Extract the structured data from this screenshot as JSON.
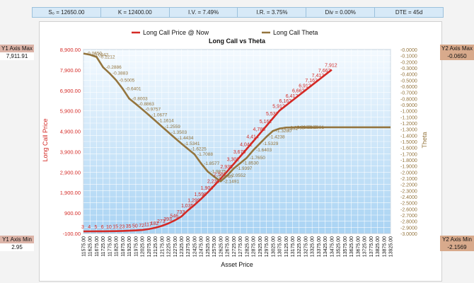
{
  "params": {
    "s0": "S₀ = 12650.00",
    "k": "K = 12400.00",
    "iv": "I.V. = 7.49%",
    "ir": "I.R. = 3.75%",
    "div": "Div = 0.00%",
    "dte": "DTE = 45d"
  },
  "axis_boxes": {
    "y1_max_label": "Y1 Axis Max",
    "y1_max_value": "7,911.91",
    "y1_min_label": "Y1 Axis Min",
    "y1_min_value": "2.95",
    "y2_max_label": "Y2 Axis Max",
    "y2_max_value": "-0.0650",
    "y2_min_label": "Y2 Axis Min",
    "y2_min_value": "-2.1569"
  },
  "colors": {
    "price_line": "#d42a26",
    "theta_line": "#94753e",
    "plot_top": "#f4faff",
    "plot_bottom": "#a9d3f3",
    "y1_text": "#d42a26",
    "y2_text": "#94753e"
  },
  "chart_data": {
    "type": "line",
    "title": "Long Call vs Theta",
    "xlabel": "Asset Price",
    "ylabel_left": "Long Call Price",
    "ylabel_right": "Theta",
    "y1_lim": [
      -100,
      8900
    ],
    "y1_ticks": [
      "8,900.00",
      "7,900.00",
      "6,900.00",
      "5,900.00",
      "4,900.00",
      "3,900.00",
      "2,900.00",
      "1,900.00",
      "900.00",
      "-100.00"
    ],
    "y1_tick_values": [
      8900,
      7900,
      6900,
      5900,
      4900,
      3900,
      2900,
      1900,
      900,
      -100
    ],
    "y2_lim": [
      -3.0,
      0.0
    ],
    "y2_ticks": [
      "-0.0000",
      "-0.1000",
      "-0.2000",
      "-0.3000",
      "-0.4000",
      "-0.5000",
      "-0.6000",
      "-0.7000",
      "-0.8000",
      "-0.9000",
      "-1.0000",
      "-1.1000",
      "-1.2000",
      "-1.3000",
      "-1.4000",
      "-1.5000",
      "-1.6000",
      "-1.7000",
      "-1.8000",
      "-1.9000",
      "-2.0000",
      "-2.1000",
      "-2.2000",
      "-2.3000",
      "-2.4000",
      "-2.5000",
      "-2.6000",
      "-2.7000",
      "-2.8000",
      "-2.9000",
      "-3.0000"
    ],
    "y2_tick_values": [
      0,
      -0.1,
      -0.2,
      -0.3,
      -0.4,
      -0.5,
      -0.6,
      -0.7,
      -0.8,
      -0.9,
      -1.0,
      -1.1,
      -1.2,
      -1.3,
      -1.4,
      -1.5,
      -1.6,
      -1.7,
      -1.8,
      -1.9,
      -2.0,
      -2.1,
      -2.2,
      -2.3,
      -2.4,
      -2.5,
      -2.6,
      -2.7,
      -2.8,
      -2.9,
      -3.0
    ],
    "x_ticks": [
      "11575.00",
      "11625.00",
      "11675.00",
      "11725.00",
      "11775.00",
      "11825.00",
      "11875.00",
      "11925.00",
      "11975.00",
      "12025.00",
      "12075.00",
      "12125.00",
      "12175.00",
      "12225.00",
      "12275.00",
      "12325.00",
      "12375.00",
      "12425.00",
      "12475.00",
      "12525.00",
      "12575.00",
      "12625.00",
      "12675.00",
      "12725.00",
      "12775.00",
      "12825.00",
      "12875.00",
      "12925.00",
      "12975.00",
      "13025.00",
      "13075.00",
      "13125.00",
      "13175.00",
      "13225.00",
      "13275.00",
      "13325.00",
      "13375.00",
      "13425.00",
      "13475.00",
      "13525.00",
      "13575.00",
      "13625.00",
      "13675.00",
      "13725.00",
      "13775.00",
      "13825.00",
      "13875.00",
      "13925.00"
    ],
    "x_min": 11575,
    "x_max": 13925,
    "legend": {
      "placement": "top-center",
      "entries": [
        "Long Call Price @ Now",
        "Long Call Theta"
      ]
    },
    "grid": true,
    "series": [
      {
        "name": "Long Call Price @ Now",
        "axis": "left",
        "points": [
          [
            11575,
            3
          ],
          [
            11625,
            4
          ],
          [
            11675,
            5
          ],
          [
            11725,
            6
          ],
          [
            11775,
            10
          ],
          [
            11825,
            15
          ],
          [
            11875,
            23
          ],
          [
            11925,
            35
          ],
          [
            11975,
            50
          ],
          [
            12025,
            72
          ],
          [
            12075,
            117
          ],
          [
            12125,
            182
          ],
          [
            12175,
            273
          ],
          [
            12225,
            393
          ],
          [
            12275,
            546
          ],
          [
            12325,
            733
          ],
          [
            12375,
            1035
          ],
          [
            12425,
            1299
          ],
          [
            12475,
            1590
          ],
          [
            12525,
            1904
          ],
          [
            12575,
            2236
          ],
          [
            12625,
            2582
          ],
          [
            12675,
            2939
          ],
          [
            12725,
            3302
          ],
          [
            12775,
            3670
          ],
          [
            12825,
            4041
          ],
          [
            12875,
            4414
          ],
          [
            12925,
            4788
          ],
          [
            12975,
            5162
          ],
          [
            13025,
            5537
          ],
          [
            13075,
            5912
          ],
          [
            13125,
            6162
          ],
          [
            13175,
            6412
          ],
          [
            13225,
            6662
          ],
          [
            13275,
            6912
          ],
          [
            13325,
            7162
          ],
          [
            13375,
            7412
          ],
          [
            13425,
            7662
          ],
          [
            13475,
            7912
          ]
        ],
        "labels": [
          [
            11575,
            "3"
          ],
          [
            11625,
            "4"
          ],
          [
            11675,
            "5"
          ],
          [
            11725,
            "6"
          ],
          [
            11775,
            "10"
          ],
          [
            11825,
            "15"
          ],
          [
            11875,
            "23"
          ],
          [
            11925,
            "35"
          ],
          [
            11975,
            "50"
          ],
          [
            12025,
            "72"
          ],
          [
            12075,
            "117"
          ],
          [
            12125,
            "182"
          ],
          [
            12175,
            "273"
          ],
          [
            12225,
            "393"
          ],
          [
            12275,
            "546"
          ],
          [
            12325,
            "733"
          ],
          [
            12375,
            "1,035"
          ],
          [
            12425,
            "1,299"
          ],
          [
            12475,
            "1,590"
          ],
          [
            12525,
            "1,904"
          ],
          [
            12575,
            "2,236"
          ],
          [
            12625,
            "2,582"
          ],
          [
            12675,
            "2,939"
          ],
          [
            12725,
            "3,302"
          ],
          [
            12775,
            "3,670"
          ],
          [
            12825,
            "4,041"
          ],
          [
            12875,
            "4,414"
          ],
          [
            12925,
            "4,788"
          ],
          [
            12975,
            "5,162"
          ],
          [
            13025,
            "5,537"
          ],
          [
            13075,
            "5,912"
          ],
          [
            13125,
            "6,162"
          ],
          [
            13175,
            "6,412"
          ],
          [
            13225,
            "6,662"
          ],
          [
            13275,
            "6,912"
          ],
          [
            13325,
            "7,162"
          ],
          [
            13375,
            "7,412"
          ],
          [
            13425,
            "7,662"
          ],
          [
            13475,
            "7,912"
          ]
        ]
      },
      {
        "name": "Long Call Theta",
        "axis": "right",
        "points": [
          [
            11575,
            -0.065
          ],
          [
            11625,
            -0.0842
          ],
          [
            11675,
            -0.1212
          ],
          [
            11725,
            -0.2886
          ],
          [
            11775,
            -0.3883
          ],
          [
            11825,
            -0.5005
          ],
          [
            11875,
            -0.6401
          ],
          [
            11925,
            -0.8003
          ],
          [
            11975,
            -0.8863
          ],
          [
            12025,
            -0.9757
          ],
          [
            12075,
            -1.0677
          ],
          [
            12125,
            -1.1614
          ],
          [
            12175,
            -1.2559
          ],
          [
            12225,
            -1.3503
          ],
          [
            12275,
            -1.4434
          ],
          [
            12325,
            -1.5341
          ],
          [
            12375,
            -1.6225
          ],
          [
            12425,
            -1.7088
          ],
          [
            12475,
            -1.8577
          ],
          [
            12525,
            -1.9875
          ],
          [
            12575,
            -2.074
          ],
          [
            12625,
            -2.1491
          ],
          [
            12675,
            -2.0552
          ],
          [
            12725,
            -1.9397
          ],
          [
            12775,
            -1.853
          ],
          [
            12825,
            -1.765
          ],
          [
            12875,
            -1.6403
          ],
          [
            12925,
            -1.5329
          ],
          [
            12975,
            -1.4238
          ],
          [
            13025,
            -1.328
          ],
          [
            13075,
            -1.2891
          ],
          [
            13125,
            -1.2733
          ],
          [
            13175,
            -1.2693
          ],
          [
            13225,
            -1.2683
          ],
          [
            13275,
            -1.2681
          ]
        ],
        "labels": [
          [
            11575,
            "-0.0650"
          ],
          [
            11625,
            "-0.0842"
          ],
          [
            11675,
            "-0.1212"
          ],
          [
            11725,
            "-0.2886"
          ],
          [
            11775,
            "-0.3883"
          ],
          [
            11825,
            "-0.5005"
          ],
          [
            11875,
            "-0.6401"
          ],
          [
            11925,
            "-0.8003"
          ],
          [
            11975,
            "-0.8863"
          ],
          [
            12025,
            "-0.9757"
          ],
          [
            12075,
            "-1.0677"
          ],
          [
            12125,
            "-1.1614"
          ],
          [
            12175,
            "-1.2559"
          ],
          [
            12225,
            "-1.3503"
          ],
          [
            12275,
            "-1.4434"
          ],
          [
            12325,
            "-1.5341"
          ],
          [
            12375,
            "-1.6225"
          ],
          [
            12425,
            "-1.7088"
          ],
          [
            12475,
            "-1.8577"
          ],
          [
            12525,
            "-1.9875"
          ],
          [
            12575,
            "-2.0740"
          ],
          [
            12625,
            "-2.1491"
          ],
          [
            12675,
            "-2.0552"
          ],
          [
            12725,
            "-1.9397"
          ],
          [
            12775,
            "-1.8530"
          ],
          [
            12825,
            "-1.7650"
          ],
          [
            12875,
            "-1.6403"
          ],
          [
            12925,
            "-1.5329"
          ],
          [
            12975,
            "-1.4238"
          ],
          [
            13025,
            "-1.3280"
          ],
          [
            13075,
            "-1.2891"
          ],
          [
            13125,
            "-1.2733"
          ],
          [
            13175,
            "-1.2693"
          ],
          [
            13225,
            "-1.2683"
          ],
          [
            13275,
            "-1.2681"
          ]
        ]
      }
    ]
  }
}
